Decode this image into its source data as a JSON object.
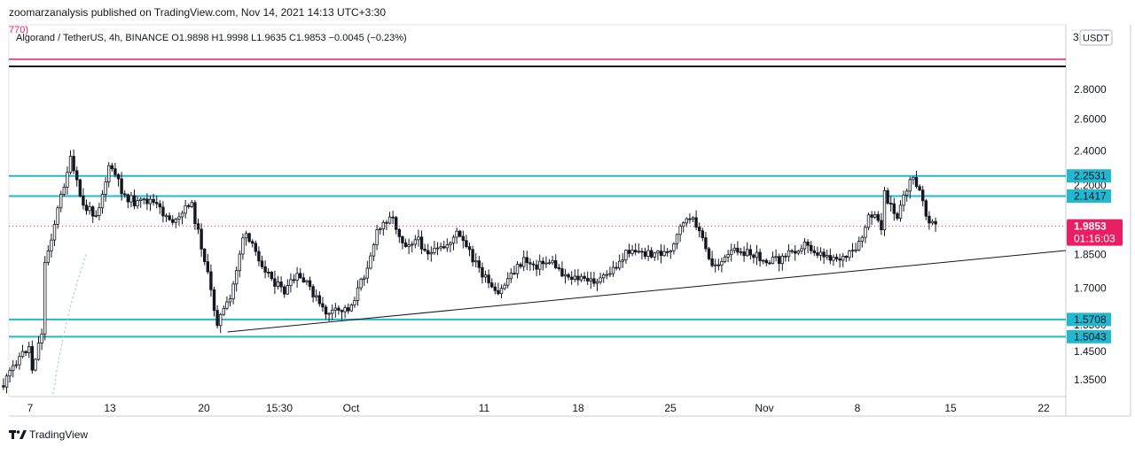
{
  "header": {
    "publisher_line": "zoomarzanalysis published on TradingView.com, Nov 14, 2021 14:13 UTC+3:30",
    "clipped_prefix": "770)",
    "ohlc_line": "Algorand / TetherUS, 4h, BINANCE  O1.9898  H1.9998  L1.9635  C1.9853  −0.0045 (−0.23%)"
  },
  "footer": {
    "brand": "TradingView"
  },
  "price_scale": {
    "currency": "USDT",
    "top_clipped_label": "3"
  },
  "colors": {
    "level_line": "#22b8cf",
    "up_candle": "#131722",
    "down_candle": "#131722",
    "current_price": "#e91e63",
    "top_level": "#e91e63",
    "trendline": "#131722",
    "price_label_bg": "#22b8cf"
  },
  "chart_data": {
    "type": "candlestick",
    "symbol": "Algorand / TetherUS",
    "timeframe": "4h",
    "exchange": "BINANCE",
    "ohlc": {
      "open": 1.9898,
      "high": 1.9998,
      "low": 1.9635,
      "close": 1.9853,
      "change": -0.0045,
      "change_pct": -0.23
    },
    "y_axis": {
      "scale": "log",
      "ticks": [
        2.8,
        2.6,
        2.4,
        1.85,
        1.7,
        1.45,
        1.35
      ],
      "tick_labels": [
        "2.8000",
        "2.6000",
        "2.4000",
        "1.8500",
        "1.7000",
        "1.4500",
        "1.3500"
      ],
      "ylim": [
        1.3,
        3.1
      ]
    },
    "x_axis": {
      "ticks": [
        "7",
        "13",
        "20",
        "15:30",
        "Oct",
        "11",
        "18",
        "25",
        "Nov",
        "8",
        "15",
        "22"
      ]
    },
    "horizontal_levels": [
      {
        "value": 2.2531,
        "label": "2.2531"
      },
      {
        "value": 2.1417,
        "label": "2.1417"
      },
      {
        "value": 1.5708,
        "label": "1.5708"
      },
      {
        "value": 1.5043,
        "label": "1.5043"
      }
    ],
    "hidden_overlapped_labels": [
      "2.2000",
      "1.5500"
    ],
    "top_level": {
      "value": 3.02
    },
    "current_price": {
      "value": 1.9853,
      "label": "1.9853",
      "countdown": "01:16:03"
    },
    "trendline": {
      "from": {
        "date": "Sep 21",
        "price": 1.51
      },
      "to": {
        "date": "Nov 18",
        "price": 1.87
      }
    },
    "price_path": [
      {
        "date": "Sep 5",
        "price": 1.33
      },
      {
        "date": "Sep 6",
        "price": 1.42
      },
      {
        "date": "Sep 7",
        "price": 1.47
      },
      {
        "date": "Sep 7",
        "price": 1.36
      },
      {
        "date": "Sep 8",
        "price": 1.55
      },
      {
        "date": "Sep 8",
        "price": 1.78
      },
      {
        "date": "Sep 9",
        "price": 2.05
      },
      {
        "date": "Sep 10",
        "price": 2.35
      },
      {
        "date": "Sep 11",
        "price": 2.08
      },
      {
        "date": "Sep 12",
        "price": 2.05
      },
      {
        "date": "Sep 13",
        "price": 2.32
      },
      {
        "date": "Sep 14",
        "price": 2.15
      },
      {
        "date": "Sep 15",
        "price": 2.1
      },
      {
        "date": "Sep 16",
        "price": 2.12
      },
      {
        "date": "Sep 17",
        "price": 2.05
      },
      {
        "date": "Sep 18",
        "price": 2.0
      },
      {
        "date": "Sep 19",
        "price": 2.12
      },
      {
        "date": "Sep 20",
        "price": 1.85
      },
      {
        "date": "Sep 21",
        "price": 1.56
      },
      {
        "date": "Sep 22",
        "price": 1.65
      },
      {
        "date": "Sep 23",
        "price": 1.95
      },
      {
        "date": "Sep 24",
        "price": 1.85
      },
      {
        "date": "Sep 25",
        "price": 1.75
      },
      {
        "date": "Sep 26",
        "price": 1.68
      },
      {
        "date": "Sep 27",
        "price": 1.75
      },
      {
        "date": "Sep 28",
        "price": 1.7
      },
      {
        "date": "Sep 29",
        "price": 1.6
      },
      {
        "date": "Sep 30",
        "price": 1.6
      },
      {
        "date": "Oct 1",
        "price": 1.62
      },
      {
        "date": "Oct 2",
        "price": 1.75
      },
      {
        "date": "Oct 3",
        "price": 1.95
      },
      {
        "date": "Oct 4",
        "price": 2.05
      },
      {
        "date": "Oct 5",
        "price": 1.9
      },
      {
        "date": "Oct 6",
        "price": 1.92
      },
      {
        "date": "Oct 7",
        "price": 1.85
      },
      {
        "date": "Oct 8",
        "price": 1.88
      },
      {
        "date": "Oct 9",
        "price": 1.95
      },
      {
        "date": "Oct 10",
        "price": 1.85
      },
      {
        "date": "Oct 11",
        "price": 1.75
      },
      {
        "date": "Oct 12",
        "price": 1.66
      },
      {
        "date": "Oct 13",
        "price": 1.76
      },
      {
        "date": "Oct 14",
        "price": 1.82
      },
      {
        "date": "Oct 15",
        "price": 1.8
      },
      {
        "date": "Oct 16",
        "price": 1.82
      },
      {
        "date": "Oct 17",
        "price": 1.76
      },
      {
        "date": "Oct 18",
        "price": 1.74
      },
      {
        "date": "Oct 19",
        "price": 1.73
      },
      {
        "date": "Oct 20",
        "price": 1.74
      },
      {
        "date": "Oct 21",
        "price": 1.8
      },
      {
        "date": "Oct 22",
        "price": 1.88
      },
      {
        "date": "Oct 23",
        "price": 1.85
      },
      {
        "date": "Oct 24",
        "price": 1.86
      },
      {
        "date": "Oct 25",
        "price": 1.85
      },
      {
        "date": "Oct 26",
        "price": 2.02
      },
      {
        "date": "Oct 27",
        "price": 2.0
      },
      {
        "date": "Oct 28",
        "price": 1.8
      },
      {
        "date": "Oct 29",
        "price": 1.82
      },
      {
        "date": "Oct 30",
        "price": 1.88
      },
      {
        "date": "Oct 31",
        "price": 1.85
      },
      {
        "date": "Nov 1",
        "price": 1.83
      },
      {
        "date": "Nov 2",
        "price": 1.82
      },
      {
        "date": "Nov 3",
        "price": 1.86
      },
      {
        "date": "Nov 4",
        "price": 1.9
      },
      {
        "date": "Nov 5",
        "price": 1.86
      },
      {
        "date": "Nov 6",
        "price": 1.84
      },
      {
        "date": "Nov 7",
        "price": 1.83
      },
      {
        "date": "Nov 8",
        "price": 1.87
      },
      {
        "date": "Nov 9",
        "price": 2.05
      },
      {
        "date": "Nov 10",
        "price": 1.97
      },
      {
        "date": "Nov 10",
        "price": 2.17
      },
      {
        "date": "Nov 11",
        "price": 2.02
      },
      {
        "date": "Nov 12",
        "price": 2.25
      },
      {
        "date": "Nov 13",
        "price": 2.12
      },
      {
        "date": "Nov 13",
        "price": 2.05
      },
      {
        "date": "Nov 14",
        "price": 1.9853
      }
    ]
  }
}
